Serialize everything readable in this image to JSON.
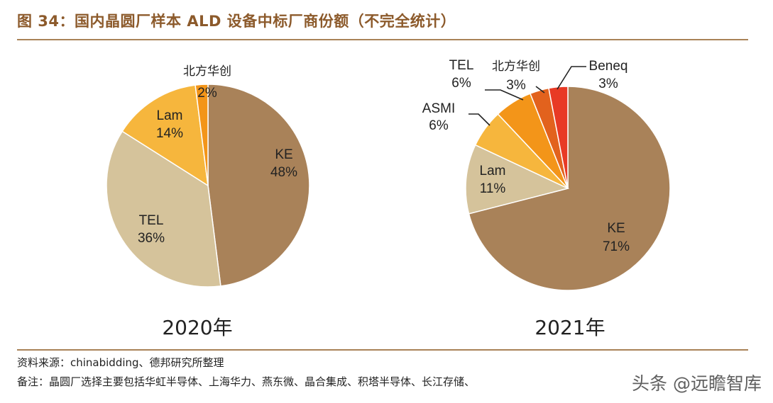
{
  "title": "图 34：国内晶圆厂样本 ALD 设备中标厂商份额（不完全统计）",
  "source": "资料来源：chinabidding、德邦研究所整理",
  "remark": "备注：晶圆厂选择主要包括华虹半导体、上海华力、燕东微、晶合集成、积塔半导体、长江存储、",
  "watermark": "头条 @远瞻智库",
  "chart_data": [
    {
      "type": "pie",
      "title": "2020年",
      "unit": "%",
      "start_angle_deg": 0,
      "direction": "clockwise",
      "slices": [
        {
          "name": "KE",
          "value": 48,
          "label_value": "48%",
          "color": "#a98259"
        },
        {
          "name": "TEL",
          "value": 36,
          "label_value": "36%",
          "color": "#d5c39b"
        },
        {
          "name": "Lam",
          "value": 14,
          "label_value": "14%",
          "color": "#f6b63d"
        },
        {
          "name": "北方华创",
          "value": 2,
          "label_value": "2%",
          "color": "#f39519"
        }
      ]
    },
    {
      "type": "pie",
      "title": "2021年",
      "unit": "%",
      "start_angle_deg": 0,
      "direction": "clockwise",
      "slices": [
        {
          "name": "KE",
          "value": 71,
          "label_value": "71%",
          "color": "#a98259"
        },
        {
          "name": "Lam",
          "value": 11,
          "label_value": "11%",
          "color": "#d5c39b"
        },
        {
          "name": "ASMI",
          "value": 6,
          "label_value": "6%",
          "color": "#f6b63d"
        },
        {
          "name": "TEL",
          "value": 6,
          "label_value": "6%",
          "color": "#f39519"
        },
        {
          "name": "北方华创",
          "value": 3,
          "label_value": "3%",
          "color": "#e2621d"
        },
        {
          "name": "Beneq",
          "value": 3,
          "label_value": "3%",
          "color": "#e83a25"
        }
      ]
    }
  ]
}
